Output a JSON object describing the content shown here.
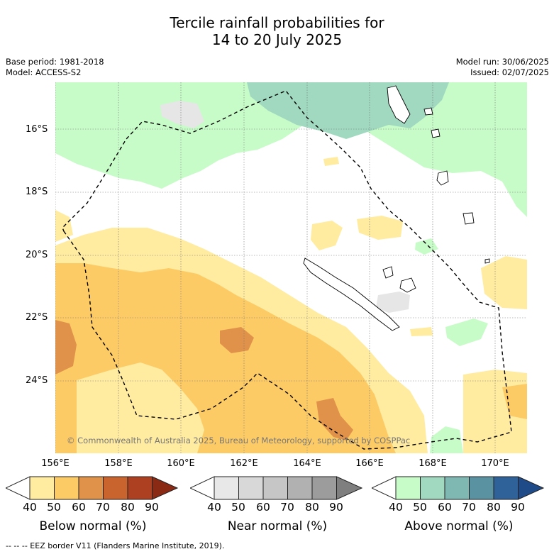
{
  "title": {
    "line1": "Tercile rainfall probabilities for",
    "line2": "14 to 20 July 2025"
  },
  "meta": {
    "base_period": "Base period: 1981-2018",
    "model": "Model: ACCESS-S2",
    "model_run": "Model run: 30/06/2025",
    "issued": "Issued: 02/07/2025"
  },
  "axes": {
    "lat_ticks": [
      "16°S",
      "18°S",
      "20°S",
      "22°S",
      "24°S"
    ],
    "lon_ticks": [
      "156°E",
      "158°E",
      "160°E",
      "162°E",
      "164°E",
      "166°E",
      "168°E",
      "170°E"
    ]
  },
  "copyright": "© Commonwealth of Australia 2025, Bureau of Meteorology, supported by COSPPac",
  "colorbars": [
    {
      "label": "Below normal (%)",
      "ticks": [
        "40",
        "50",
        "60",
        "70",
        "80",
        "90"
      ],
      "colors": [
        "#ffffff",
        "#ffeca0",
        "#fdcb66",
        "#e0924a",
        "#c9642f",
        "#ad4020",
        "#8b2a14"
      ]
    },
    {
      "label": "Near normal (%)",
      "ticks": [
        "40",
        "50",
        "60",
        "70",
        "80",
        "90"
      ],
      "colors": [
        "#ffffff",
        "#e8e8e8",
        "#d8d8d8",
        "#c6c6c6",
        "#b1b1b1",
        "#9c9c9c",
        "#7f7f7f"
      ]
    },
    {
      "label": "Above normal (%)",
      "ticks": [
        "40",
        "50",
        "60",
        "70",
        "80",
        "90"
      ],
      "colors": [
        "#ffffff",
        "#c7fcc8",
        "#a0d9c0",
        "#7fb8b2",
        "#5a92a2",
        "#2f6299",
        "#1f4c88"
      ]
    }
  ],
  "footnote": "-- -- -- EEZ border V11 (Flanders Marine Institute, 2019).",
  "map_colors": {
    "below_50": "#ffeca0",
    "below_60": "#fdcb66",
    "below_70": "#e0924a",
    "near_50": "#e6e6e6",
    "above_50": "#c7fcc8",
    "above_60": "#a0d9c0"
  }
}
